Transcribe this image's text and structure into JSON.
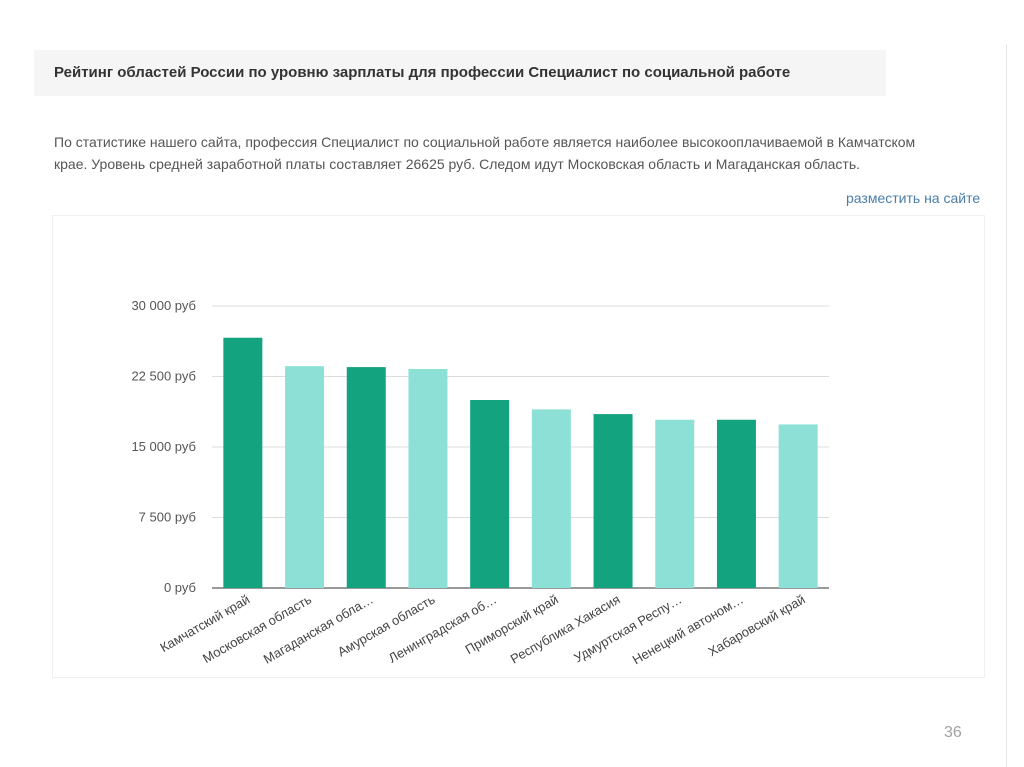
{
  "title": "Рейтинг областей России по уровню зарплаты для профессии Специалист по социальной работе",
  "description_line1": "По статистике нашего сайта, профессия Специалист по социальной работе является наиболее высокооплачиваемой в Камчатском",
  "description_line2": "крае. Уровень средней заработной платы составляет 26625 руб. Следом идут Московская область и Магаданская область.",
  "embed_link": "разместить на сайте",
  "slide_number": "36",
  "colors": {
    "dark_bar": "#13a47f",
    "light_bar": "#8ce0d5",
    "grid": "#dcdcdc",
    "axis_text": "#555555"
  },
  "chart_data": {
    "type": "bar",
    "title": "",
    "xlabel": "",
    "ylabel": "",
    "ylim": [
      0,
      30000
    ],
    "y_ticks": [
      {
        "value": 0,
        "label": "0 руб"
      },
      {
        "value": 7500,
        "label": "7 500 руб"
      },
      {
        "value": 15000,
        "label": "15 000 руб"
      },
      {
        "value": 22500,
        "label": "22 500 руб"
      },
      {
        "value": 30000,
        "label": "30 000 руб"
      }
    ],
    "categories": [
      "Камчатский край",
      "Московская область",
      "Магаданская обла…",
      "Амурская область",
      "Ленинградская об…",
      "Приморский край",
      "Республика Хакасия",
      "Удмуртская Респу…",
      "Ненецкий автоном…",
      "Хабаровский край"
    ],
    "values": [
      26625,
      23600,
      23500,
      23300,
      20000,
      19000,
      18500,
      17900,
      17900,
      17400
    ],
    "bar_colors": [
      "dark",
      "light",
      "dark",
      "light",
      "dark",
      "light",
      "dark",
      "light",
      "dark",
      "light"
    ],
    "grid": true,
    "legend": "none"
  }
}
